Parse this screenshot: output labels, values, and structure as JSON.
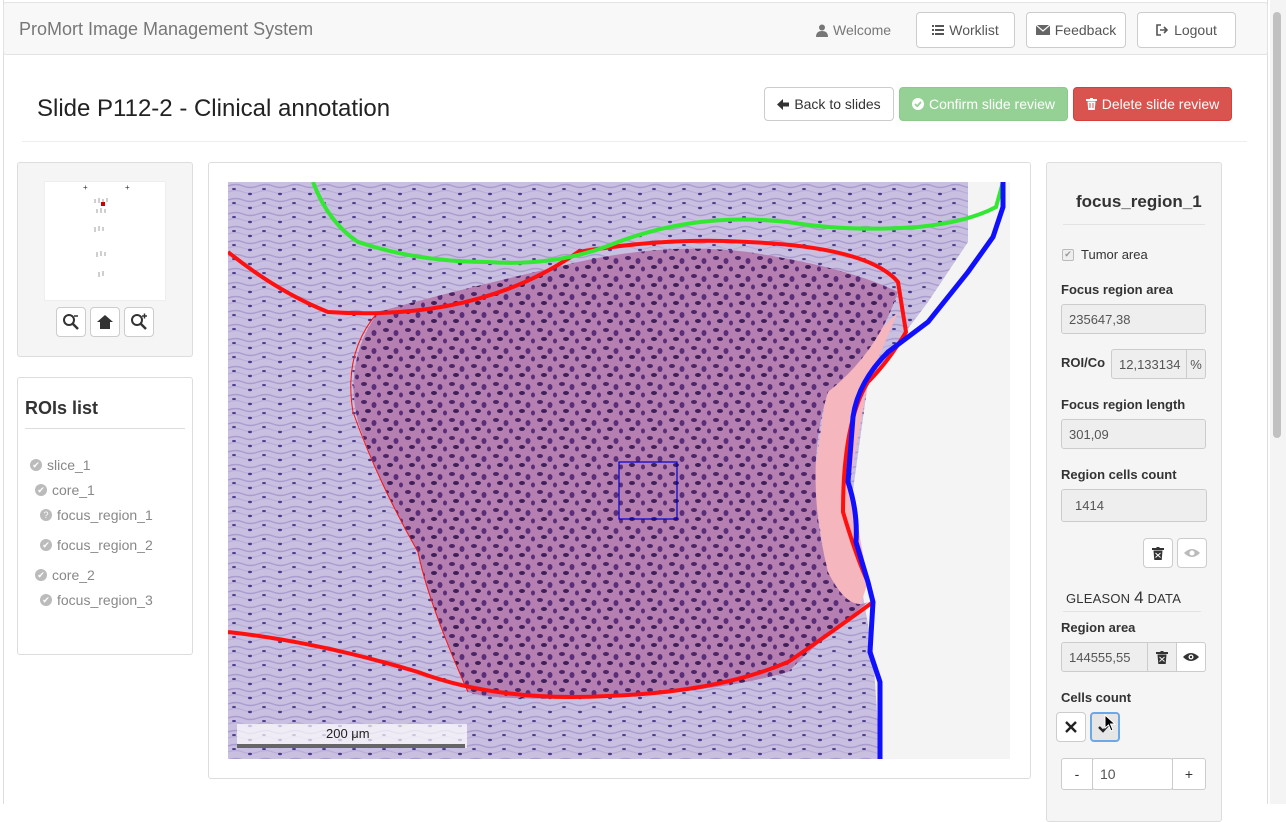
{
  "navbar": {
    "brand": "ProMort Image Management System",
    "welcome": "Welcome",
    "worklist": "Worklist",
    "feedback": "Feedback",
    "logout": "Logout"
  },
  "header": {
    "title": "Slide P112-2 - Clinical annotation",
    "back": "Back to slides",
    "confirm": "Confirm slide review",
    "delete": "Delete slide review"
  },
  "rois": {
    "title": "ROIs list",
    "items": [
      {
        "label": "slice_1",
        "status": "check"
      },
      {
        "label": "core_1",
        "status": "check"
      },
      {
        "label": "focus_region_1",
        "status": "question"
      },
      {
        "label": "focus_region_2",
        "status": "check"
      },
      {
        "label": "core_2",
        "status": "check"
      },
      {
        "label": "focus_region_3",
        "status": "check"
      }
    ]
  },
  "viewer": {
    "scale_label": "200 μm"
  },
  "details": {
    "title": "focus_region_1",
    "tumor_label": "Tumor area",
    "area_label": "Focus region area",
    "area_value": "235647,38",
    "ratio_label": "ROI/Co",
    "ratio_value": "12,133134",
    "ratio_unit": "%",
    "length_label": "Focus region length",
    "length_value": "301,09",
    "cells_label": "Region cells count",
    "cells_value": "1414",
    "gleason_prefix": "GLEASON",
    "gleason_num": "4",
    "gleason_suffix": "DATA",
    "g_area_label": "Region area",
    "g_area_value": "144555,55",
    "g_cells_label": "Cells count",
    "stepper_minus": "-",
    "stepper_value": "10",
    "stepper_plus": "+"
  },
  "colors": {
    "danger": "#d9534f",
    "success": "#95d195",
    "annotation_red": "#ff0000",
    "annotation_green": "#33e833",
    "annotation_blue": "#0000ff"
  }
}
